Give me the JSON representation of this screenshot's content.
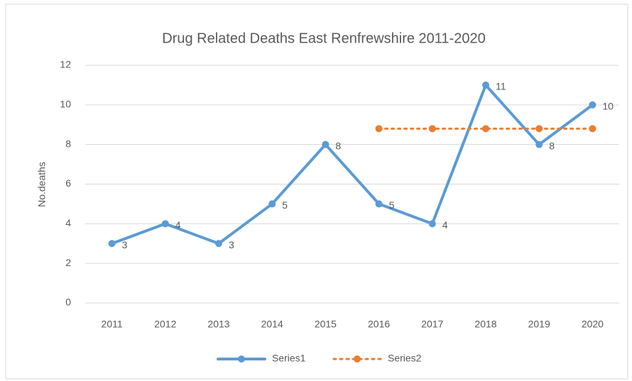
{
  "chart_data": {
    "type": "line",
    "title": "Drug Related Deaths East Renfrewshire 2011-2020",
    "y_label": "No.deaths",
    "categories": [
      "2011",
      "2012",
      "2013",
      "2014",
      "2015",
      "2016",
      "2017",
      "2018",
      "2019",
      "2020"
    ],
    "series": [
      {
        "name": "Series1",
        "color": "#5b9bd5",
        "style": "solid",
        "data_labels": true,
        "values": [
          3,
          4,
          3,
          5,
          8,
          5,
          4,
          11,
          8,
          10
        ]
      },
      {
        "name": "Series2",
        "color": "#ed7d31",
        "style": "dotted",
        "data_labels": false,
        "values": [
          null,
          null,
          null,
          null,
          null,
          8.8,
          8.8,
          8.8,
          8.8,
          8.8
        ]
      }
    ],
    "ylim": [
      0,
      12
    ],
    "yticks": [
      0,
      2,
      4,
      6,
      8,
      10,
      12
    ],
    "grid": true,
    "legend": "bottom"
  }
}
